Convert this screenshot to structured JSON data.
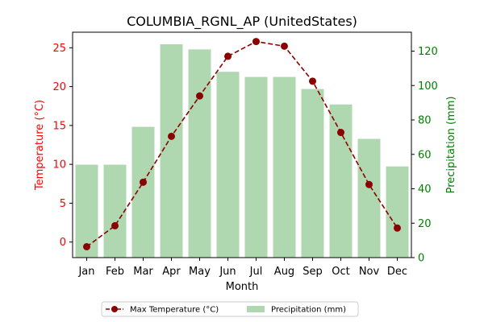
{
  "chart_data": {
    "type": "bar+line",
    "title": "COLUMBIA_RGNL_AP (UnitedStates)",
    "xlabel": "Month",
    "categories": [
      "Jan",
      "Feb",
      "Mar",
      "Apr",
      "May",
      "Jun",
      "Jul",
      "Aug",
      "Sep",
      "Oct",
      "Nov",
      "Dec"
    ],
    "left_axis": {
      "label": "Temperature (°C)",
      "color": "#ff0000",
      "ylim": [
        -2,
        27
      ],
      "ticks": [
        0,
        5,
        10,
        15,
        20,
        25
      ]
    },
    "right_axis": {
      "label": "Precipitation (mm)",
      "color": "#008000",
      "ylim": [
        0,
        131
      ],
      "ticks": [
        0,
        20,
        40,
        60,
        80,
        100,
        120
      ]
    },
    "series": [
      {
        "name": "Max Temperature (°C)",
        "type": "line",
        "axis": "left",
        "color": "#8b0000",
        "style": "dashed-with-circle-markers",
        "values": [
          -0.6,
          2.1,
          7.7,
          13.6,
          18.8,
          23.9,
          25.8,
          25.2,
          20.7,
          14.1,
          7.4,
          1.8
        ]
      },
      {
        "name": "Precipitation (mm)",
        "type": "bar",
        "axis": "right",
        "color": "#b0d8b0",
        "values": [
          54,
          54,
          76,
          124,
          121,
          108,
          105,
          105,
          98,
          89,
          69,
          53
        ]
      }
    ],
    "legend": {
      "placement": "bottom-center",
      "columns": 2
    },
    "grid": false
  }
}
